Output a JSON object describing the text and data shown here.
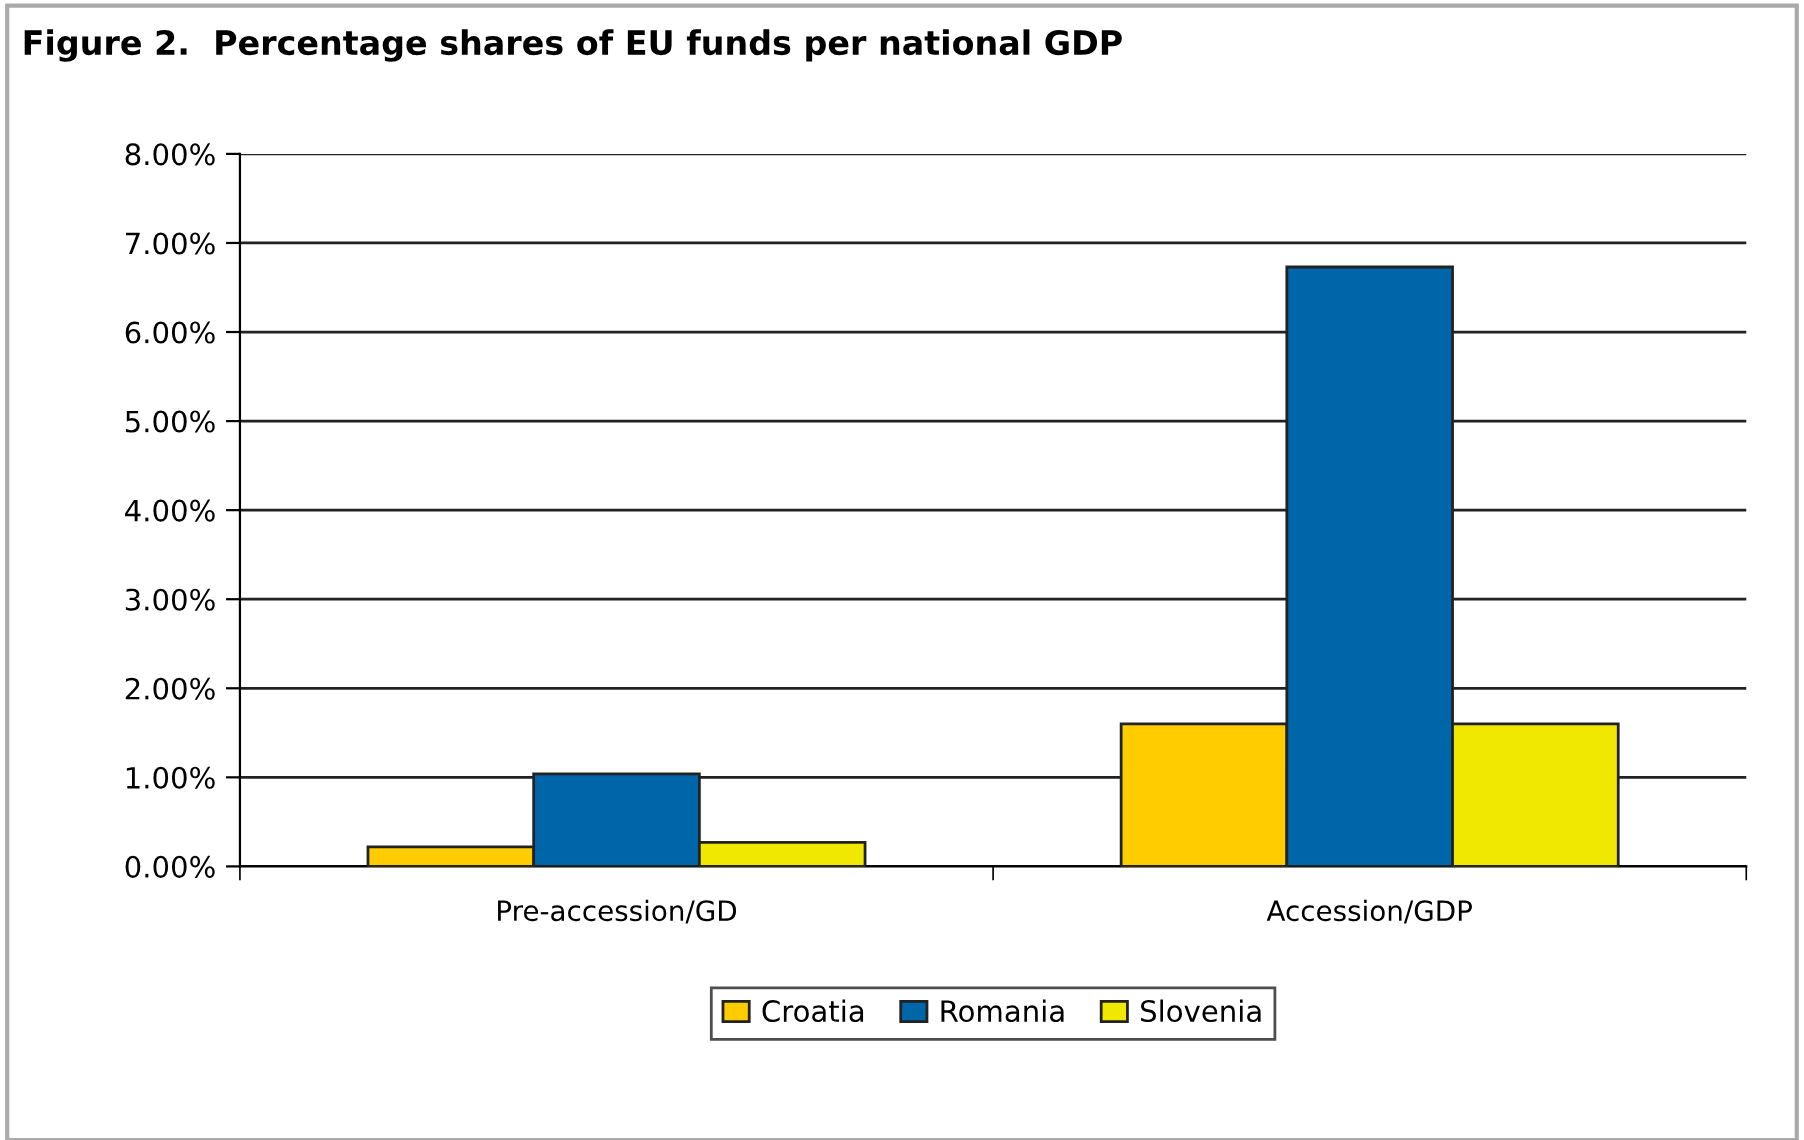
{
  "chart_data": {
    "type": "bar",
    "title": "Figure 2.  Percentage shares of EU funds per national GDP",
    "categories": [
      "Pre-accession/GD",
      "Accession/GDP"
    ],
    "series": [
      {
        "name": "Croatia",
        "color": "#ffcc00",
        "values": [
          0.22,
          1.6
        ]
      },
      {
        "name": "Romania",
        "color": "#0066aa",
        "values": [
          1.04,
          6.73
        ]
      },
      {
        "name": "Slovenia",
        "color": "#f0e800",
        "values": [
          0.27,
          1.6
        ]
      }
    ],
    "ylim": [
      0,
      8
    ],
    "yticks": [
      {
        "value": 0,
        "label": "0.00%"
      },
      {
        "value": 1,
        "label": "1.00%"
      },
      {
        "value": 2,
        "label": "2.00%"
      },
      {
        "value": 3,
        "label": "3.00%"
      },
      {
        "value": 4,
        "label": "4.00%"
      },
      {
        "value": 5,
        "label": "5.00%"
      },
      {
        "value": 6,
        "label": "6.00%"
      },
      {
        "value": 7,
        "label": "7.00%"
      },
      {
        "value": 8,
        "label": "8.00%"
      }
    ],
    "grid": "y",
    "legend": "bottom"
  }
}
